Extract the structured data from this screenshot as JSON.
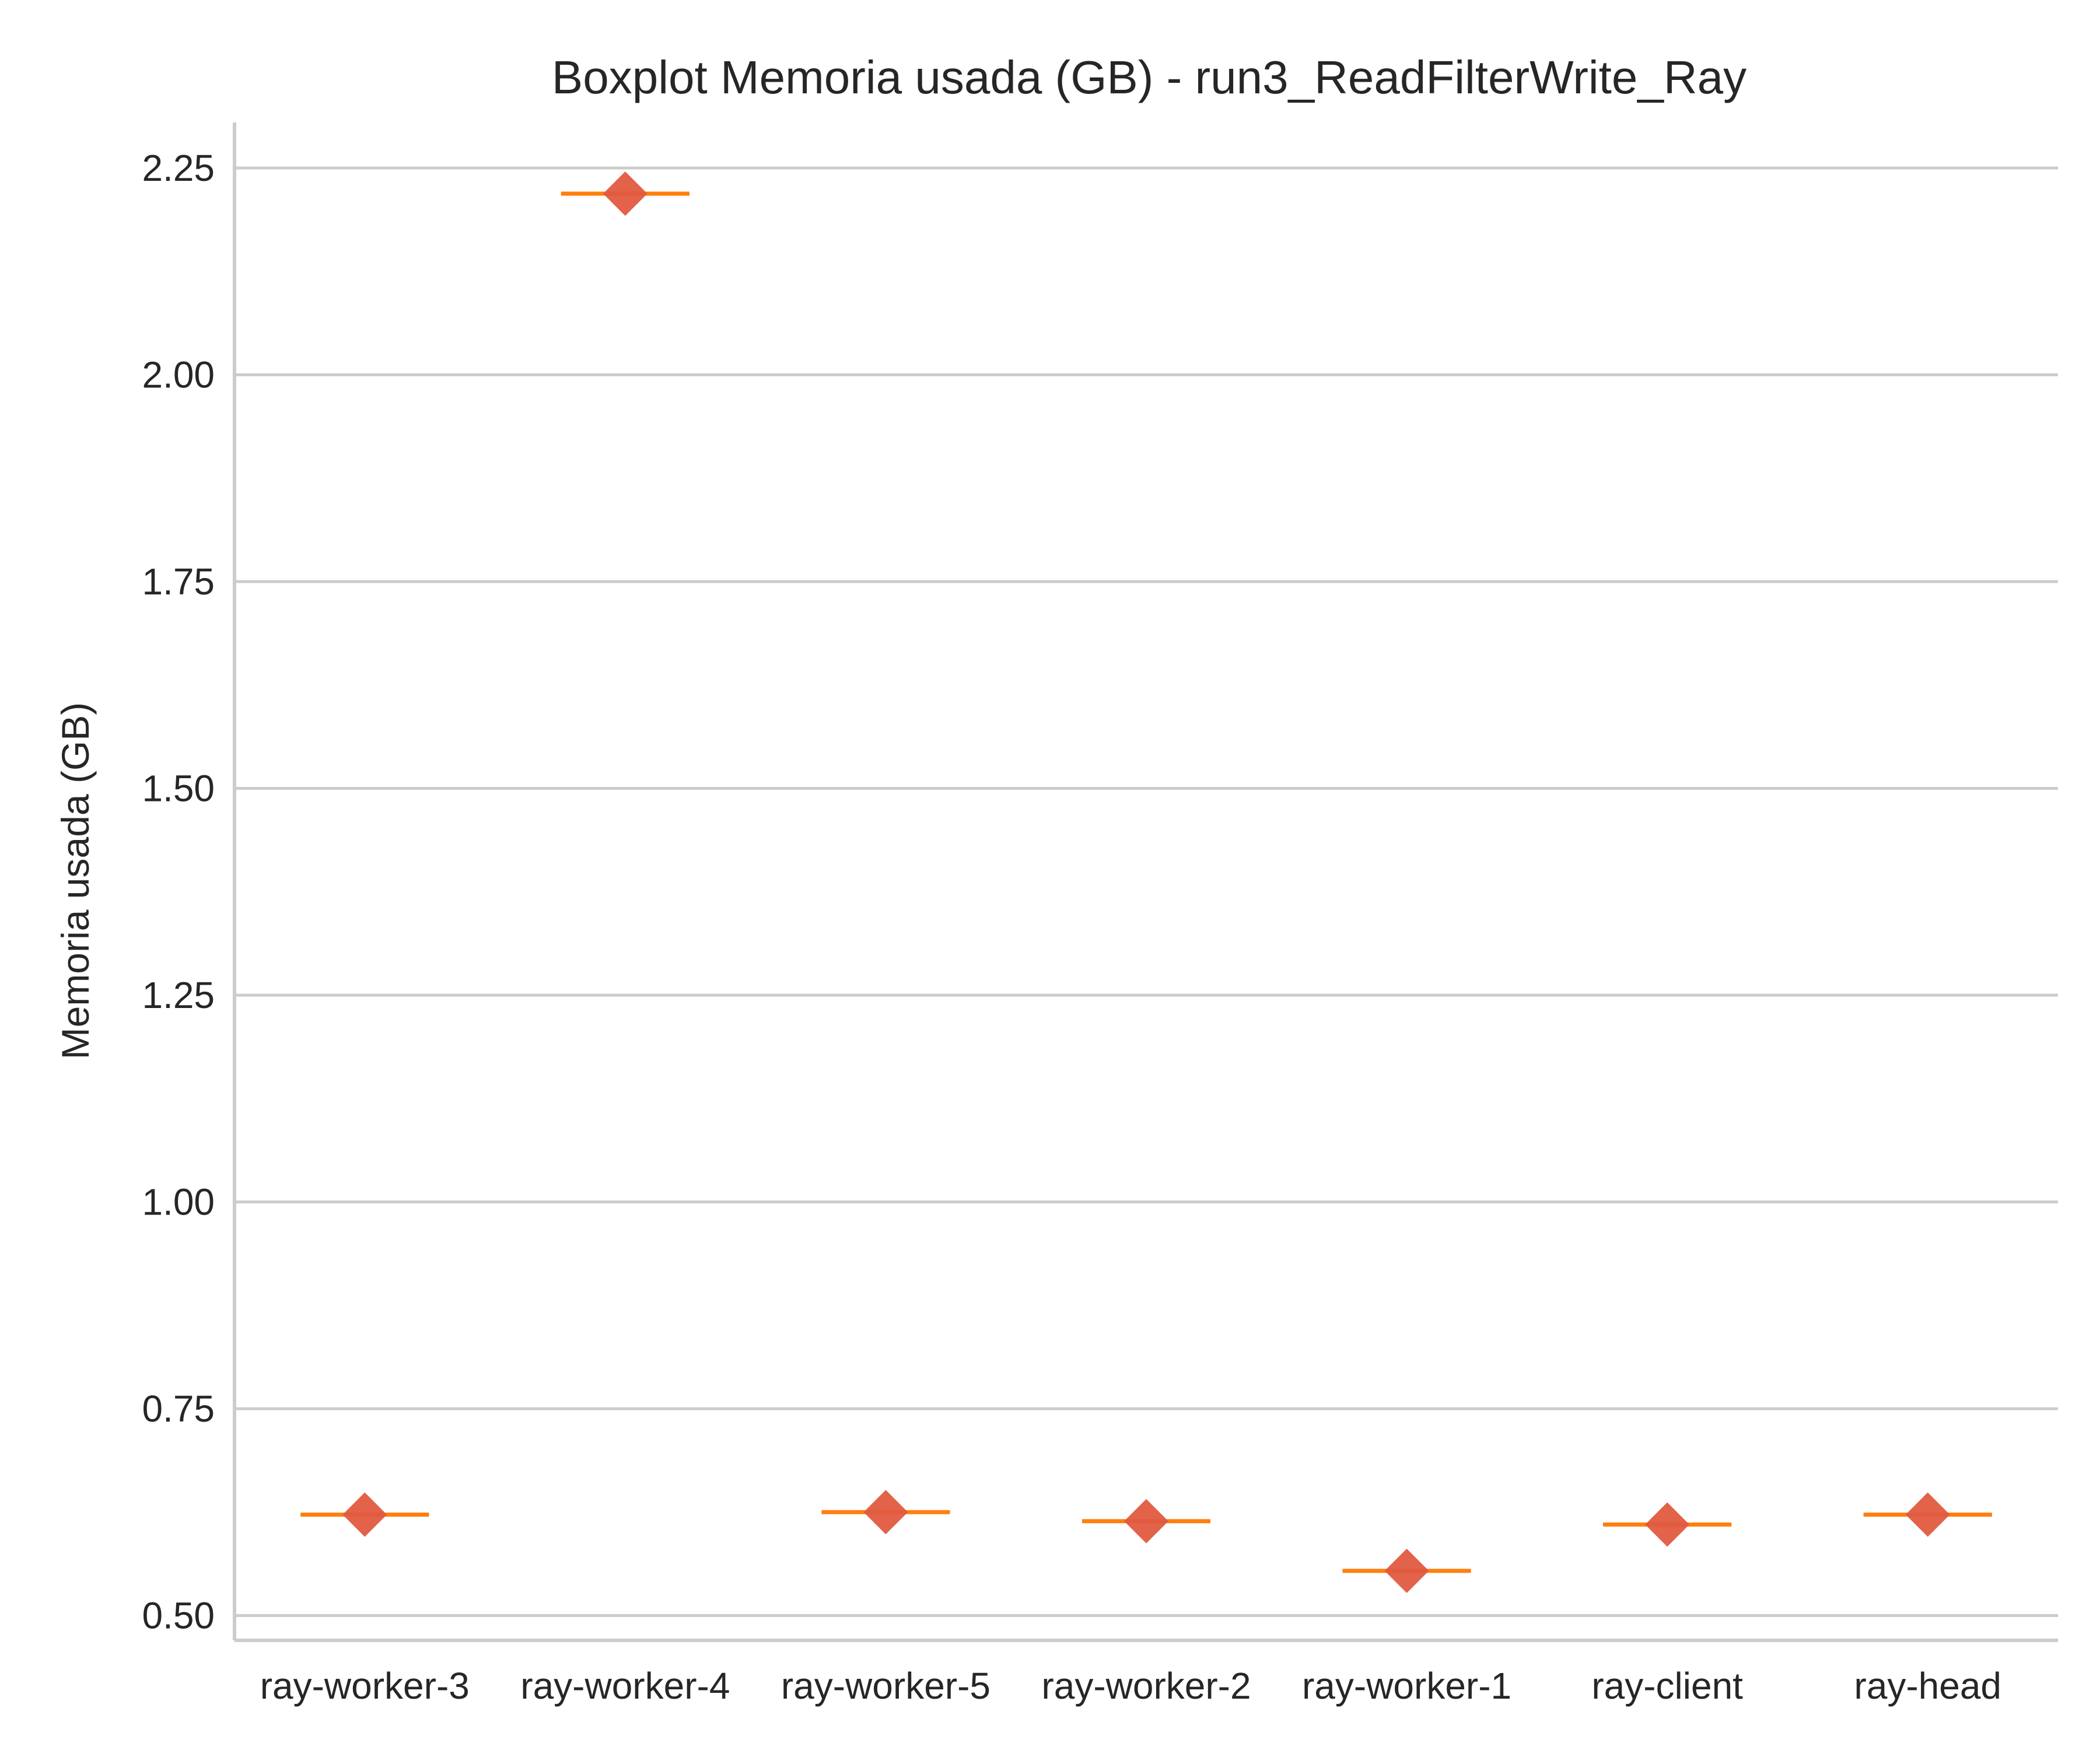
{
  "chart_data": {
    "type": "boxplot",
    "title": "Boxplot Memoria usada (GB) - run3_ReadFilterWrite_Ray",
    "xlabel": "",
    "ylabel": "Memoria usada (GB)",
    "ylim": [
      0.47,
      2.305
    ],
    "yticks": [
      "0.50",
      "0.75",
      "1.00",
      "1.25",
      "1.50",
      "1.75",
      "2.00",
      "2.25"
    ],
    "grid": "horizontal",
    "categories": [
      "ray-worker-3",
      "ray-worker-4",
      "ray-worker-5",
      "ray-worker-2",
      "ray-worker-1",
      "ray-client",
      "ray-head"
    ],
    "medians": [
      0.622,
      2.219,
      0.625,
      0.614,
      0.554,
      0.61,
      0.622
    ],
    "means": [
      0.622,
      2.219,
      0.625,
      0.614,
      0.554,
      0.61,
      0.622
    ],
    "colors": {
      "median": "#ff7f0e",
      "mean_marker": "#e05a40",
      "grid": "#cccccc",
      "axis": "#cccccc",
      "box": "#262626"
    }
  }
}
